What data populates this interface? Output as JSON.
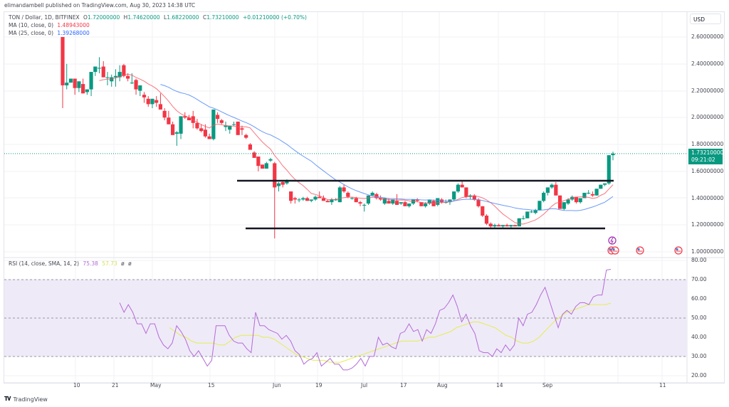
{
  "header": {
    "published": "elimandambell published on TradingView.com, Aug 30, 2023 14:38 UTC"
  },
  "legend": {
    "symbol": "TON / Dollar, 1D, BITFINEX",
    "open_label": "O",
    "open": "1.72000000",
    "high_label": "H",
    "high": "1.74620000",
    "low_label": "L",
    "low": "1.68220000",
    "close_label": "C",
    "close": "1.73210000",
    "change": "+0.01210000 (+0.70%)",
    "ma10_label": "MA (10, close, 0)",
    "ma10_value": "1.48943000",
    "ma25_label": "MA (25, close, 0)",
    "ma25_value": "1.39268000",
    "rsi_label": "RSI (14, close, SMA, 14, 2)",
    "rsi_value": "75.38",
    "rsi_ma_value": "57.73",
    "rsi_extra1": "ø",
    "rsi_extra2": "ø"
  },
  "price_axis": {
    "currency_button": "USD",
    "ticks": [
      "2.60000000",
      "2.40000000",
      "2.20000000",
      "2.00000000",
      "1.80000000",
      "1.60000000",
      "1.40000000",
      "1.20000000",
      "1.00000000"
    ],
    "last_price": "1.73210000",
    "countdown": "09:21:02"
  },
  "rsi_axis": {
    "ticks": [
      "80.00",
      "70.00",
      "60.00",
      "50.00",
      "40.00",
      "30.00",
      "20.00"
    ]
  },
  "time_axis": {
    "ticks": [
      "10",
      "21",
      "May",
      "15",
      "Jun",
      "19",
      "Jul",
      "17",
      "Aug",
      "14",
      "Sep",
      "11"
    ]
  },
  "footer": {
    "brand": "TradingView"
  },
  "colors": {
    "up": "#089981",
    "down": "#f23645",
    "ma10": "#f7525f",
    "ma25": "#5b8ff9",
    "rsi": "#b36bd6",
    "rsi_ma": "#e3ef4d",
    "rsi_band": "#efeaf8",
    "grid": "#f0f2f5"
  },
  "chart_data": [
    {
      "type": "candlestick",
      "title": "TON / Dollar, 1D, BITFINEX",
      "ylabel": "USD",
      "ylim": [
        0.95,
        2.72
      ],
      "x_ticks": [
        "10",
        "21",
        "May",
        "15",
        "Jun",
        "19",
        "Jul",
        "17",
        "Aug",
        "14",
        "Sep",
        "11"
      ],
      "ohlc_last": {
        "open": 1.72,
        "high": 1.7462,
        "low": 1.6822,
        "close": 1.7321
      },
      "series": [
        {
          "name": "MA (10, close, 0)",
          "last": 1.48943
        },
        {
          "name": "MA (25, close, 0)",
          "last": 1.39268
        }
      ],
      "annotations": [
        {
          "type": "horizontal_line",
          "label": "resistance",
          "y": 1.53,
          "x_range": [
            "late May",
            "late Aug"
          ]
        },
        {
          "type": "horizontal_line",
          "label": "support",
          "y": 1.17,
          "x_range": [
            "early Jun",
            "late Aug"
          ]
        }
      ],
      "candles": [
        [
          2.6,
          2.6,
          2.07,
          2.24
        ],
        [
          2.24,
          2.4,
          2.21,
          2.26
        ],
        [
          2.26,
          2.29,
          2.26,
          2.29
        ],
        [
          2.29,
          2.29,
          2.17,
          2.22
        ],
        [
          2.22,
          2.27,
          2.19,
          2.27
        ],
        [
          2.25,
          2.29,
          2.18,
          2.18
        ],
        [
          2.19,
          2.21,
          2.17,
          2.21
        ],
        [
          2.21,
          2.34,
          2.16,
          2.34
        ],
        [
          2.34,
          2.36,
          2.31,
          2.38
        ],
        [
          2.37,
          2.45,
          2.33,
          2.37
        ],
        [
          2.38,
          2.42,
          2.3,
          2.3
        ],
        [
          2.3,
          2.34,
          2.24,
          2.3
        ],
        [
          2.27,
          2.32,
          2.23,
          2.3
        ],
        [
          2.3,
          2.36,
          2.23,
          2.31
        ],
        [
          2.3,
          2.39,
          2.27,
          2.34
        ],
        [
          2.39,
          2.4,
          2.3,
          2.31
        ],
        [
          2.31,
          2.33,
          2.27,
          2.29
        ],
        [
          2.26,
          2.33,
          2.25,
          2.26
        ],
        [
          2.28,
          2.29,
          2.17,
          2.21
        ],
        [
          2.2,
          2.24,
          2.16,
          2.24
        ],
        [
          2.17,
          2.19,
          2.11,
          2.15
        ],
        [
          2.14,
          2.16,
          2.08,
          2.1
        ],
        [
          2.1,
          2.14,
          2.07,
          2.14
        ],
        [
          2.13,
          2.16,
          2.08,
          2.11
        ],
        [
          2.1,
          2.18,
          2.06,
          2.06
        ],
        [
          2.05,
          2.07,
          1.98,
          2.0
        ],
        [
          2.0,
          2.05,
          1.95,
          1.95
        ],
        [
          1.95,
          1.97,
          1.87,
          1.87
        ],
        [
          1.88,
          1.9,
          1.79,
          1.89
        ],
        [
          1.88,
          1.91,
          1.84,
          2.01
        ],
        [
          2.01,
          2.04,
          1.99,
          2.0
        ],
        [
          2.0,
          2.02,
          1.98,
          1.98
        ],
        [
          2.01,
          2.05,
          1.92,
          1.96
        ],
        [
          1.96,
          1.99,
          1.91,
          1.92
        ],
        [
          1.92,
          1.95,
          1.89,
          1.9
        ],
        [
          1.91,
          1.95,
          1.85,
          1.86
        ],
        [
          1.86,
          1.88,
          1.84,
          1.84
        ],
        [
          1.84,
          2.06,
          1.83,
          2.06
        ],
        [
          2.02,
          2.04,
          1.96,
          1.99
        ],
        [
          1.98,
          1.99,
          1.95,
          1.96
        ],
        [
          1.93,
          1.97,
          1.9,
          1.94
        ],
        [
          1.91,
          1.94,
          1.88,
          1.94
        ],
        [
          1.95,
          1.97,
          1.94,
          1.95
        ],
        [
          1.97,
          1.97,
          1.87,
          1.87
        ],
        [
          1.92,
          1.94,
          1.87,
          1.91
        ],
        [
          1.87,
          1.88,
          1.84,
          1.85
        ],
        [
          1.8,
          1.81,
          1.76,
          1.76
        ],
        [
          1.74,
          1.75,
          1.7,
          1.7
        ],
        [
          1.71,
          1.71,
          1.6,
          1.64
        ],
        [
          1.65,
          1.65,
          1.62,
          1.62
        ],
        [
          1.62,
          1.67,
          1.62,
          1.66
        ],
        [
          1.68,
          1.7,
          1.67,
          1.69
        ],
        [
          1.66,
          1.67,
          1.1,
          1.48
        ],
        [
          1.49,
          1.52,
          1.45,
          1.51
        ],
        [
          1.52,
          1.53,
          1.48,
          1.5
        ],
        [
          1.51,
          1.54,
          1.5,
          1.53
        ],
        [
          1.45,
          1.45,
          1.36,
          1.38
        ],
        [
          1.4,
          1.41,
          1.36,
          1.39
        ],
        [
          1.39,
          1.4,
          1.37,
          1.39
        ]
      ],
      "note": "candles list OHLC as [open, high, low, close], approximated from pixels; remaining candles Jun-Aug rendered in template script"
    },
    {
      "type": "line",
      "title": "RSI (14, close, SMA, 14, 2)",
      "ylim": [
        18,
        82
      ],
      "bands": {
        "upper": 70,
        "middle": 50,
        "lower": 30
      },
      "series": [
        {
          "name": "RSI",
          "last": 75.38,
          "values": [
            58,
            53,
            57,
            53,
            47,
            47,
            42,
            47,
            47,
            40,
            36,
            34,
            37,
            46,
            43,
            39,
            33,
            30,
            33,
            29,
            25,
            28,
            46,
            46,
            46,
            41,
            38,
            37,
            37,
            34,
            32,
            53,
            46,
            46,
            44,
            43,
            42,
            39,
            41,
            38,
            33,
            31,
            26,
            28,
            29,
            32,
            25,
            27,
            29,
            26,
            26,
            23,
            23,
            24,
            26,
            29,
            25,
            30,
            30,
            40,
            36,
            37,
            35,
            34,
            42,
            43,
            47,
            43,
            44,
            38,
            44,
            42,
            47,
            54,
            55,
            58,
            62,
            56,
            48,
            52,
            46,
            42,
            33,
            32,
            32,
            30,
            34,
            32,
            36,
            33,
            36,
            50,
            46,
            52,
            53,
            57,
            62,
            66,
            59,
            52,
            45,
            52,
            54,
            52,
            56,
            58,
            58,
            57,
            61,
            62,
            62,
            75,
            75.38
          ]
        },
        {
          "name": "RSI-based MA",
          "last": 57.73,
          "values": [
            45,
            43,
            41,
            40,
            38,
            37,
            37,
            37,
            37,
            36,
            36,
            38,
            40,
            41,
            41,
            41,
            41,
            40,
            40,
            39,
            37,
            35,
            33,
            31,
            30,
            29,
            28,
            28,
            28,
            27,
            27,
            27,
            28,
            29,
            30,
            31,
            32,
            33,
            34,
            35,
            36,
            37,
            38,
            38,
            38,
            38,
            39,
            40,
            40,
            41,
            42,
            43,
            45,
            46,
            47,
            48,
            48,
            47,
            46,
            45,
            43,
            41,
            40,
            38,
            37,
            37,
            38,
            40,
            43,
            46,
            49,
            51,
            53,
            54,
            55,
            56,
            57,
            57,
            57,
            57,
            57.73
          ]
        }
      ]
    }
  ]
}
